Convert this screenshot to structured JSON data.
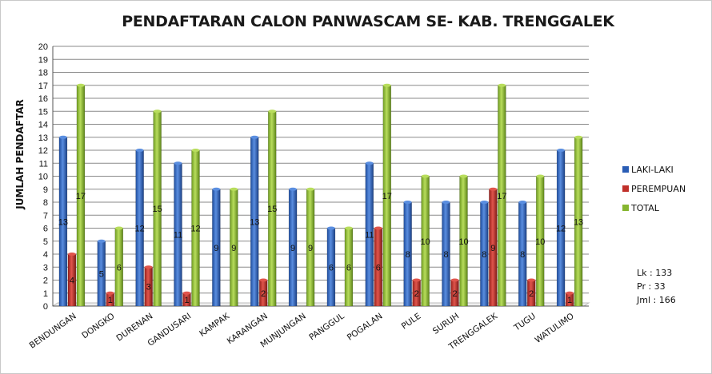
{
  "chart_data": {
    "type": "bar",
    "title": "PENDAFTARAN CALON PANWASCAM SE- KAB. TRENGGALEK",
    "xlabel": "",
    "ylabel": "JUMLAH PENDAFTAR",
    "ylim": [
      0,
      20
    ],
    "yticks": [
      "0",
      "1",
      "2",
      "3",
      "4",
      "5",
      "6",
      "7",
      "8",
      "9",
      "10",
      "11",
      "12",
      "13",
      "14",
      "15",
      "16",
      "17",
      "18",
      "19",
      "20"
    ],
    "grid": true,
    "legend_position": "right",
    "categories": [
      "BENDUNGAN",
      "DONGKO",
      "DURENAN",
      "GANDUSARI",
      "KAMPAK",
      "KARANGAN",
      "MUNJUNGAN",
      "PANGGUL",
      "POGALAN",
      "PULE",
      "SURUH",
      "TRENGGALEK",
      "TUGU",
      "WATULIMO"
    ],
    "series": [
      {
        "name": "LAKI-LAKI",
        "color": "#2a5db5",
        "values": [
          13,
          5,
          12,
          11,
          9,
          13,
          9,
          6,
          11,
          8,
          8,
          8,
          8,
          12
        ]
      },
      {
        "name": "PEREMPUAN",
        "color": "#c0302a",
        "values": [
          4,
          1,
          3,
          1,
          0,
          2,
          0,
          0,
          6,
          2,
          2,
          9,
          2,
          1
        ]
      },
      {
        "name": "TOTAL",
        "color": "#86b630",
        "values": [
          17,
          6,
          15,
          12,
          9,
          15,
          9,
          6,
          17,
          10,
          10,
          17,
          10,
          13
        ]
      }
    ]
  },
  "summary": {
    "lk": "Lk : 133",
    "pr": "Pr : 33",
    "jml": "Jml : 166"
  }
}
